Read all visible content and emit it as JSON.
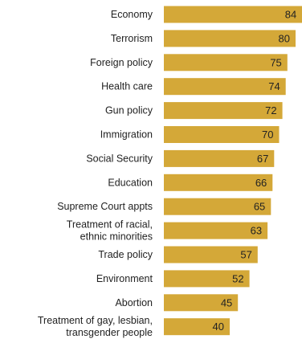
{
  "chart_data": {
    "type": "bar",
    "orientation": "horizontal",
    "categories": [
      "Economy",
      "Terrorism",
      "Foreign policy",
      "Health care",
      "Gun policy",
      "Immigration",
      "Social Security",
      "Education",
      "Supreme Court appts",
      "Treatment of racial, ethnic minorities",
      "Trade policy",
      "Environment",
      "Abortion",
      "Treatment of gay, lesbian, transgender people"
    ],
    "category_lines": [
      [
        "Economy"
      ],
      [
        "Terrorism"
      ],
      [
        "Foreign policy"
      ],
      [
        "Health care"
      ],
      [
        "Gun policy"
      ],
      [
        "Immigration"
      ],
      [
        "Social Security"
      ],
      [
        "Education"
      ],
      [
        "Supreme Court appts"
      ],
      [
        "Treatment of racial,",
        "ethnic minorities"
      ],
      [
        "Trade policy"
      ],
      [
        "Environment"
      ],
      [
        "Abortion"
      ],
      [
        "Treatment of gay, lesbian,",
        "transgender people"
      ]
    ],
    "values": [
      84,
      80,
      75,
      74,
      72,
      70,
      67,
      66,
      65,
      63,
      57,
      52,
      45,
      40
    ],
    "xlim": [
      0,
      100
    ],
    "title": "",
    "xlabel": "",
    "ylabel": "",
    "grid": false,
    "legend": "none",
    "bar_color": "#D4A838"
  }
}
